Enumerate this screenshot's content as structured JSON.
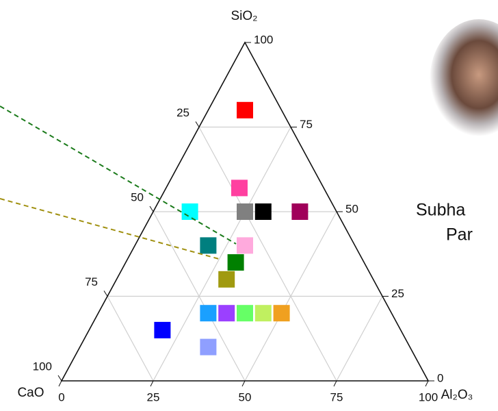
{
  "chart_data": {
    "type": "ternary",
    "top_label": "SiO₂",
    "left_label": "CaO",
    "right_label": "Al₂O₃",
    "sio2_ticks": [
      0,
      25,
      50,
      75,
      100
    ],
    "al2o3_ticks": [
      0,
      25,
      50,
      75,
      100
    ],
    "cao_ticks": [
      25,
      50,
      75,
      100
    ],
    "grid": true,
    "sio2": [
      80,
      57,
      50,
      50,
      50,
      50,
      40,
      40,
      35,
      30,
      20,
      20,
      20,
      20,
      20,
      15,
      10
    ],
    "al2o3": [
      10,
      20,
      10,
      25,
      30,
      40,
      20,
      30,
      30,
      30,
      30,
      35,
      40,
      45,
      50,
      20,
      35
    ],
    "cao": [
      10,
      23,
      40,
      25,
      20,
      10,
      40,
      30,
      35,
      40,
      50,
      45,
      40,
      35,
      30,
      65,
      55
    ],
    "colors": [
      "#ff0000",
      "#ff40a0",
      "#00ffff",
      "#808080",
      "#000000",
      "#a0005a",
      "#007f7f",
      "#ffaadd",
      "#008000",
      "#a09a10",
      "#1aa0ff",
      "#9b40ff",
      "#66ff66",
      "#c0f060",
      "#f0a020",
      "#0000ff",
      "#8f9fff"
    ]
  },
  "caption": {
    "line1": "Subha",
    "line2": "Par"
  }
}
